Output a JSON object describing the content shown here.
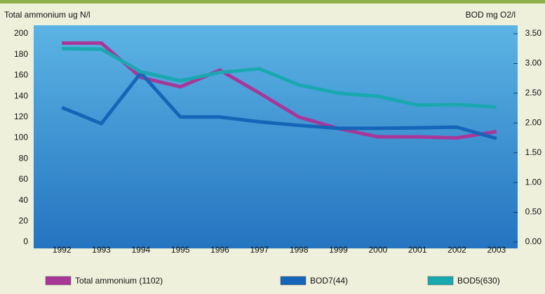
{
  "chart_data": {
    "type": "line",
    "y_label": "Total ammonium ug N/l",
    "y2_label": "BOD mg O2/l",
    "categories": [
      "1992",
      "1993",
      "1994",
      "1995",
      "1996",
      "1997",
      "1998",
      "1999",
      "2000",
      "2001",
      "2002",
      "2003"
    ],
    "series": [
      {
        "name": "Total ammonium (1102)",
        "color": "#a8379a",
        "axis": "y",
        "values": [
          191,
          191,
          158,
          149,
          165,
          143,
          120,
          109,
          101,
          101,
          100,
          106
        ]
      },
      {
        "name": "BOD7(44)",
        "color": "#1565b8",
        "axis": "y2",
        "values": [
          2.26,
          1.99,
          2.84,
          2.1,
          2.1,
          2.02,
          1.96,
          1.91,
          1.91,
          1.92,
          1.93,
          1.74
        ]
      },
      {
        "name": "BOD5(630)",
        "color": "#1aa8b0",
        "axis": "y2",
        "values": [
          3.25,
          3.24,
          2.86,
          2.71,
          2.85,
          2.91,
          2.64,
          2.5,
          2.45,
          2.3,
          2.31,
          2.27
        ]
      }
    ],
    "ylim": [
      0,
      200
    ],
    "yticks": [
      0,
      20,
      40,
      60,
      80,
      100,
      120,
      140,
      160,
      180,
      200
    ],
    "y2lim": [
      0,
      3.5
    ],
    "y2ticks": [
      {
        "value": 0,
        "label": "0.00"
      },
      {
        "value": 0.5,
        "label": "0.50"
      },
      {
        "value": 1,
        "label": "1.00"
      },
      {
        "value": 1.5,
        "label": "1.50"
      },
      {
        "value": 2,
        "label": "2.00"
      },
      {
        "value": 2.5,
        "label": "2.50"
      },
      {
        "value": 3,
        "label": "3.00"
      },
      {
        "value": 3.5,
        "label": "3.50"
      }
    ],
    "grid": false,
    "legend": "bottom"
  }
}
